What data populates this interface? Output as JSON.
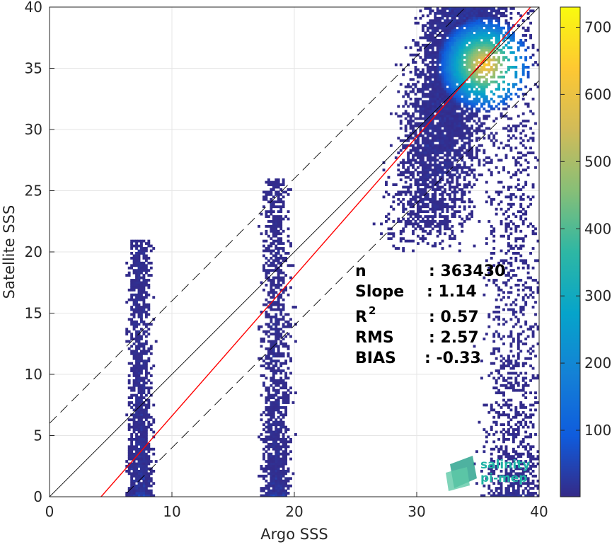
{
  "chart_data": {
    "type": "heatmap",
    "subtype": "density-scatter (2D histogram)",
    "title": "",
    "xlabel": "Argo SSS",
    "ylabel": "Satellite SSS",
    "xlim": [
      0,
      40
    ],
    "ylim": [
      0,
      40
    ],
    "xticks": [
      0,
      10,
      20,
      30,
      40
    ],
    "yticks": [
      0,
      5,
      10,
      15,
      20,
      25,
      30,
      35,
      40
    ],
    "grid": true,
    "colormap": "parula",
    "colorbar": {
      "range": [
        1,
        730
      ],
      "ticks": [
        100,
        200,
        300,
        400,
        500,
        600,
        700
      ]
    },
    "reference_lines": {
      "identity": {
        "slope": 1,
        "intercept": 0,
        "color": "#000000",
        "style": "solid"
      },
      "upper_bound": {
        "slope": 1,
        "intercept": 6,
        "color": "#000000",
        "style": "dashed"
      },
      "lower_bound": {
        "slope": 1,
        "intercept": -6,
        "color": "#000000",
        "style": "dashed"
      },
      "regression": {
        "slope": 1.14,
        "intercept": -4.8,
        "color": "#ff0000",
        "style": "solid"
      }
    },
    "density_clusters": [
      {
        "x_center": 7.4,
        "x_spread": 0.45,
        "y_range": [
          0,
          21
        ],
        "peak_count": 60
      },
      {
        "x_center": 18.5,
        "x_spread": 0.55,
        "y_range": [
          0,
          26
        ],
        "peak_count": 70
      },
      {
        "x_center": 34.5,
        "x_spread": 2.2,
        "y_range": [
          20,
          40
        ],
        "peak_count": 730,
        "peak_at": [
          35.5,
          35.2
        ]
      },
      {
        "x_center": 38.0,
        "x_spread": 1.2,
        "y_range": [
          0,
          40
        ],
        "peak_count": 80
      }
    ],
    "stats": [
      {
        "name": "n",
        "value": "363430"
      },
      {
        "name": "Slope",
        "value": "1.14"
      },
      {
        "name": "R",
        "superscript": "2",
        "value": "0.57"
      },
      {
        "name": "RMS",
        "value": "2.57"
      },
      {
        "name": "BIAS",
        "value": "-0.33"
      }
    ],
    "stats_separator": ":",
    "logo": {
      "line1": "salinity",
      "line2": "pi-mep"
    }
  }
}
